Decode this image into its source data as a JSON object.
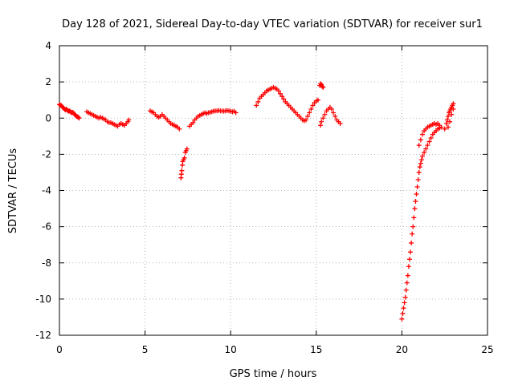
{
  "chart_data": {
    "type": "scatter",
    "title": "Day 128 of 2021, Sidereal Day-to-day VTEC variation (SDTVAR) for receiver sur1",
    "xlabel": "GPS time / hours",
    "ylabel": "SDTVAR / TECUs",
    "xlim": [
      0,
      25
    ],
    "ylim": [
      -12,
      4
    ],
    "xticks": [
      0,
      5,
      10,
      15,
      20,
      25
    ],
    "yticks": [
      4,
      2,
      0,
      -2,
      -4,
      -6,
      -8,
      -10,
      -12
    ],
    "grid": true,
    "marker": "+",
    "marker_color": "#ff0000",
    "series": [
      {
        "name": "sdtvar",
        "points": [
          [
            0.0,
            0.75
          ],
          [
            0.05,
            0.72
          ],
          [
            0.1,
            0.7
          ],
          [
            0.15,
            0.65
          ],
          [
            0.2,
            0.6
          ],
          [
            0.25,
            0.55
          ],
          [
            0.3,
            0.5
          ],
          [
            0.35,
            0.45
          ],
          [
            0.4,
            0.5
          ],
          [
            0.45,
            0.45
          ],
          [
            0.5,
            0.4
          ],
          [
            0.55,
            0.38
          ],
          [
            0.6,
            0.4
          ],
          [
            0.65,
            0.35
          ],
          [
            0.7,
            0.3
          ],
          [
            0.75,
            0.32
          ],
          [
            0.8,
            0.3
          ],
          [
            0.85,
            0.25
          ],
          [
            0.9,
            0.2
          ],
          [
            0.95,
            0.15
          ],
          [
            1.0,
            0.1
          ],
          [
            1.05,
            0.08
          ],
          [
            1.1,
            0.05
          ],
          [
            1.15,
            0.0
          ],
          [
            1.6,
            0.35
          ],
          [
            1.7,
            0.3
          ],
          [
            1.8,
            0.25
          ],
          [
            1.9,
            0.2
          ],
          [
            2.0,
            0.15
          ],
          [
            2.1,
            0.1
          ],
          [
            2.2,
            0.05
          ],
          [
            2.3,
            0.0
          ],
          [
            2.4,
            0.05
          ],
          [
            2.5,
            0.0
          ],
          [
            2.6,
            -0.05
          ],
          [
            2.7,
            -0.1
          ],
          [
            2.8,
            -0.2
          ],
          [
            2.9,
            -0.25
          ],
          [
            3.0,
            -0.25
          ],
          [
            3.1,
            -0.3
          ],
          [
            3.2,
            -0.35
          ],
          [
            3.3,
            -0.4
          ],
          [
            3.4,
            -0.45
          ],
          [
            3.5,
            -0.35
          ],
          [
            3.6,
            -0.3
          ],
          [
            3.7,
            -0.35
          ],
          [
            3.8,
            -0.4
          ],
          [
            3.9,
            -0.3
          ],
          [
            4.0,
            -0.2
          ],
          [
            4.05,
            -0.1
          ],
          [
            5.3,
            0.4
          ],
          [
            5.4,
            0.35
          ],
          [
            5.5,
            0.3
          ],
          [
            5.6,
            0.2
          ],
          [
            5.7,
            0.1
          ],
          [
            5.8,
            0.05
          ],
          [
            5.9,
            0.1
          ],
          [
            6.0,
            0.2
          ],
          [
            6.1,
            0.1
          ],
          [
            6.2,
            0.0
          ],
          [
            6.3,
            -0.1
          ],
          [
            6.4,
            -0.2
          ],
          [
            6.5,
            -0.3
          ],
          [
            6.6,
            -0.35
          ],
          [
            6.7,
            -0.4
          ],
          [
            6.8,
            -0.45
          ],
          [
            6.9,
            -0.5
          ],
          [
            7.0,
            -0.6
          ],
          [
            7.1,
            -3.3
          ],
          [
            7.12,
            -3.1
          ],
          [
            7.15,
            -2.9
          ],
          [
            7.18,
            -2.6
          ],
          [
            7.2,
            -2.4
          ],
          [
            7.25,
            -2.3
          ],
          [
            7.3,
            -2.2
          ],
          [
            7.35,
            -1.9
          ],
          [
            7.4,
            -1.8
          ],
          [
            7.45,
            -1.7
          ],
          [
            7.6,
            -0.45
          ],
          [
            7.7,
            -0.35
          ],
          [
            7.8,
            -0.25
          ],
          [
            7.9,
            -0.1
          ],
          [
            8.0,
            0.0
          ],
          [
            8.1,
            0.1
          ],
          [
            8.2,
            0.15
          ],
          [
            8.3,
            0.2
          ],
          [
            8.4,
            0.25
          ],
          [
            8.5,
            0.3
          ],
          [
            8.6,
            0.25
          ],
          [
            8.7,
            0.3
          ],
          [
            8.8,
            0.32
          ],
          [
            8.9,
            0.35
          ],
          [
            9.0,
            0.38
          ],
          [
            9.1,
            0.4
          ],
          [
            9.2,
            0.4
          ],
          [
            9.3,
            0.42
          ],
          [
            9.4,
            0.4
          ],
          [
            9.5,
            0.4
          ],
          [
            9.6,
            0.38
          ],
          [
            9.7,
            0.4
          ],
          [
            9.8,
            0.42
          ],
          [
            9.9,
            0.4
          ],
          [
            10.0,
            0.38
          ],
          [
            10.1,
            0.35
          ],
          [
            10.2,
            0.38
          ],
          [
            10.3,
            0.3
          ],
          [
            11.5,
            0.7
          ],
          [
            11.6,
            0.9
          ],
          [
            11.7,
            1.1
          ],
          [
            11.8,
            1.2
          ],
          [
            11.9,
            1.3
          ],
          [
            12.0,
            1.4
          ],
          [
            12.1,
            1.5
          ],
          [
            12.2,
            1.55
          ],
          [
            12.3,
            1.6
          ],
          [
            12.4,
            1.65
          ],
          [
            12.5,
            1.7
          ],
          [
            12.6,
            1.65
          ],
          [
            12.7,
            1.6
          ],
          [
            12.8,
            1.5
          ],
          [
            12.9,
            1.35
          ],
          [
            13.0,
            1.2
          ],
          [
            13.1,
            1.05
          ],
          [
            13.2,
            0.9
          ],
          [
            13.3,
            0.8
          ],
          [
            13.4,
            0.7
          ],
          [
            13.5,
            0.6
          ],
          [
            13.6,
            0.5
          ],
          [
            13.7,
            0.4
          ],
          [
            13.8,
            0.3
          ],
          [
            13.9,
            0.2
          ],
          [
            14.0,
            0.1
          ],
          [
            14.1,
            0.0
          ],
          [
            14.2,
            -0.1
          ],
          [
            14.3,
            -0.15
          ],
          [
            14.4,
            -0.1
          ],
          [
            14.5,
            0.1
          ],
          [
            14.6,
            0.3
          ],
          [
            14.7,
            0.5
          ],
          [
            14.8,
            0.7
          ],
          [
            14.9,
            0.85
          ],
          [
            15.0,
            0.95
          ],
          [
            15.1,
            1.0
          ],
          [
            15.2,
            1.8
          ],
          [
            15.25,
            1.9
          ],
          [
            15.3,
            1.85
          ],
          [
            15.35,
            1.75
          ],
          [
            15.4,
            1.7
          ],
          [
            15.25,
            -0.4
          ],
          [
            15.3,
            -0.2
          ],
          [
            15.4,
            0.0
          ],
          [
            15.5,
            0.2
          ],
          [
            15.6,
            0.4
          ],
          [
            15.7,
            0.5
          ],
          [
            15.8,
            0.6
          ],
          [
            15.9,
            0.5
          ],
          [
            16.0,
            0.3
          ],
          [
            16.1,
            0.1
          ],
          [
            16.2,
            -0.1
          ],
          [
            16.3,
            -0.2
          ],
          [
            16.4,
            -0.3
          ],
          [
            20.0,
            -11.1
          ],
          [
            20.05,
            -10.8
          ],
          [
            20.1,
            -10.5
          ],
          [
            20.15,
            -10.2
          ],
          [
            20.2,
            -9.9
          ],
          [
            20.25,
            -9.5
          ],
          [
            20.3,
            -9.1
          ],
          [
            20.35,
            -8.7
          ],
          [
            20.4,
            -8.2
          ],
          [
            20.45,
            -7.8
          ],
          [
            20.5,
            -7.4
          ],
          [
            20.55,
            -6.9
          ],
          [
            20.6,
            -6.4
          ],
          [
            20.65,
            -6.0
          ],
          [
            20.7,
            -5.5
          ],
          [
            20.75,
            -5.0
          ],
          [
            20.8,
            -4.6
          ],
          [
            20.85,
            -4.2
          ],
          [
            20.9,
            -3.8
          ],
          [
            20.95,
            -3.4
          ],
          [
            21.0,
            -3.0
          ],
          [
            21.05,
            -2.7
          ],
          [
            21.1,
            -2.5
          ],
          [
            21.15,
            -2.3
          ],
          [
            21.2,
            -2.1
          ],
          [
            21.3,
            -1.9
          ],
          [
            21.4,
            -1.7
          ],
          [
            21.5,
            -1.5
          ],
          [
            21.6,
            -1.3
          ],
          [
            21.7,
            -1.1
          ],
          [
            21.8,
            -0.9
          ],
          [
            21.9,
            -0.8
          ],
          [
            22.0,
            -0.7
          ],
          [
            22.1,
            -0.6
          ],
          [
            22.2,
            -0.55
          ],
          [
            22.3,
            -0.5
          ],
          [
            21.0,
            -1.5
          ],
          [
            21.1,
            -1.2
          ],
          [
            21.2,
            -0.9
          ],
          [
            21.3,
            -0.7
          ],
          [
            21.4,
            -0.6
          ],
          [
            21.5,
            -0.5
          ],
          [
            21.6,
            -0.45
          ],
          [
            21.7,
            -0.4
          ],
          [
            21.8,
            -0.35
          ],
          [
            21.9,
            -0.3
          ],
          [
            22.0,
            -0.35
          ],
          [
            22.1,
            -0.3
          ],
          [
            22.2,
            -0.4
          ],
          [
            22.5,
            -0.6
          ],
          [
            22.6,
            -0.3
          ],
          [
            22.65,
            -0.1
          ],
          [
            22.7,
            0.1
          ],
          [
            22.75,
            0.3
          ],
          [
            22.8,
            0.4
          ],
          [
            22.85,
            0.5
          ],
          [
            22.9,
            0.6
          ],
          [
            22.95,
            0.7
          ],
          [
            23.0,
            0.8
          ],
          [
            22.7,
            -0.5
          ],
          [
            22.8,
            -0.2
          ],
          [
            22.9,
            0.2
          ],
          [
            23.0,
            0.5
          ]
        ]
      }
    ]
  }
}
